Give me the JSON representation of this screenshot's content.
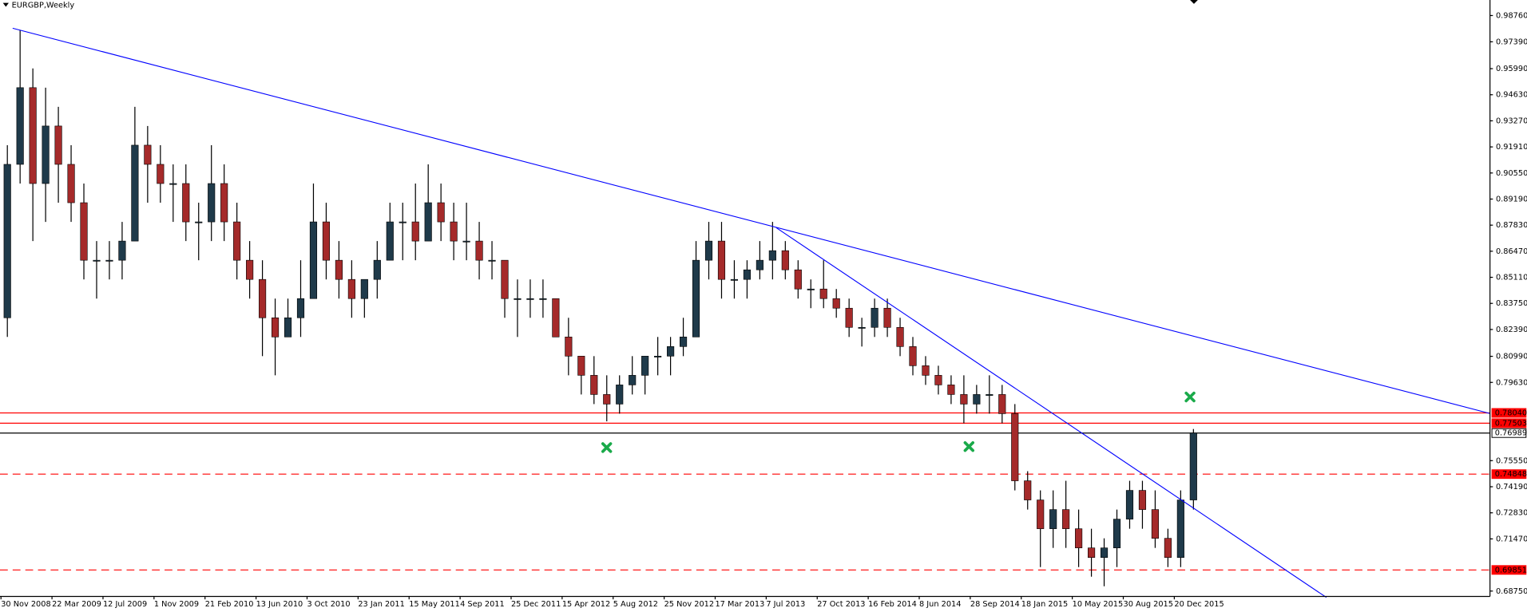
{
  "chart_data": {
    "type": "candlestick",
    "title": "EURGBP,Weekly",
    "categories": [
      "30 Nov 2008",
      null,
      null,
      null,
      "22 Mar 2009",
      null,
      null,
      null,
      "12 Jul 2009",
      null,
      null,
      null,
      "1 Nov 2009",
      null,
      null,
      null,
      "21 Feb 2010",
      null,
      null,
      null,
      "13 Jun 2010",
      null,
      null,
      null,
      "3 Oct 2010",
      null,
      null,
      null,
      "23 Jan 2011",
      null,
      null,
      null,
      "15 May 2011",
      null,
      null,
      null,
      "4 Sep 2011",
      null,
      null,
      null,
      "25 Dec 2011",
      null,
      null,
      null,
      "15 Apr 2012",
      null,
      null,
      null,
      "5 Aug 2012",
      null,
      null,
      null,
      "25 Nov 2012",
      null,
      null,
      null,
      "17 Mar 2013",
      null,
      null,
      null,
      "7 Jul 2013",
      null,
      null,
      null,
      "27 Oct 2013",
      null,
      null,
      null,
      "16 Feb 2014",
      null,
      null,
      null,
      "8 Jun 2014",
      null,
      null,
      null,
      "28 Sep 2014",
      null,
      null,
      null,
      "18 Jan 2015",
      null,
      null,
      null,
      "10 May 2015",
      null,
      null,
      null,
      "30 Aug 2015",
      null,
      null,
      null,
      "20 Dec 2015",
      null
    ],
    "open": [
      0.83,
      0.91,
      0.95,
      0.9,
      0.93,
      0.91,
      0.89,
      0.86,
      0.86,
      0.86,
      0.87,
      0.92,
      0.91,
      0.9,
      0.9,
      0.88,
      0.88,
      0.9,
      0.88,
      0.86,
      0.85,
      0.83,
      0.82,
      0.83,
      0.84,
      0.88,
      0.86,
      0.85,
      0.84,
      0.85,
      0.86,
      0.88,
      0.88,
      0.87,
      0.89,
      0.88,
      0.87,
      0.87,
      0.86,
      0.86,
      0.84,
      0.84,
      0.84,
      0.84,
      0.82,
      0.81,
      0.8,
      0.79,
      0.785,
      0.795,
      0.8,
      0.81,
      0.81,
      0.815,
      0.82,
      0.86,
      0.87,
      0.85,
      0.85,
      0.855,
      0.86,
      0.865,
      0.855,
      0.845,
      0.845,
      0.84,
      0.835,
      0.825,
      0.825,
      0.835,
      0.825,
      0.815,
      0.805,
      0.8,
      0.795,
      0.79,
      0.785,
      0.79,
      0.79,
      0.78,
      0.745,
      0.735,
      0.72,
      0.73,
      0.72,
      0.71,
      0.705,
      0.71,
      0.725,
      0.74,
      0.73,
      0.715,
      0.705,
      0.735
    ],
    "high": [
      0.92,
      0.98,
      0.96,
      0.95,
      0.94,
      0.92,
      0.9,
      0.87,
      0.87,
      0.88,
      0.94,
      0.93,
      0.92,
      0.91,
      0.91,
      0.89,
      0.92,
      0.91,
      0.89,
      0.87,
      0.86,
      0.84,
      0.84,
      0.86,
      0.9,
      0.89,
      0.87,
      0.86,
      0.85,
      0.87,
      0.89,
      0.89,
      0.9,
      0.91,
      0.9,
      0.89,
      0.89,
      0.88,
      0.87,
      0.86,
      0.85,
      0.85,
      0.85,
      0.84,
      0.83,
      0.81,
      0.81,
      0.8,
      0.8,
      0.81,
      0.81,
      0.82,
      0.82,
      0.83,
      0.87,
      0.88,
      0.88,
      0.86,
      0.86,
      0.87,
      0.88,
      0.87,
      0.86,
      0.85,
      0.86,
      0.845,
      0.84,
      0.83,
      0.84,
      0.84,
      0.83,
      0.82,
      0.81,
      0.805,
      0.8,
      0.8,
      0.795,
      0.8,
      0.795,
      0.785,
      0.75,
      0.74,
      0.74,
      0.745,
      0.73,
      0.72,
      0.715,
      0.73,
      0.745,
      0.745,
      0.74,
      0.72,
      0.74,
      0.772
    ],
    "low": [
      0.82,
      0.9,
      0.87,
      0.88,
      0.89,
      0.88,
      0.85,
      0.84,
      0.85,
      0.85,
      0.87,
      0.89,
      0.89,
      0.88,
      0.87,
      0.86,
      0.87,
      0.87,
      0.85,
      0.84,
      0.81,
      0.8,
      0.82,
      0.82,
      0.84,
      0.85,
      0.84,
      0.83,
      0.83,
      0.84,
      0.86,
      0.86,
      0.86,
      0.87,
      0.87,
      0.86,
      0.86,
      0.85,
      0.85,
      0.83,
      0.82,
      0.83,
      0.83,
      0.82,
      0.8,
      0.79,
      0.785,
      0.776,
      0.78,
      0.79,
      0.79,
      0.8,
      0.8,
      0.81,
      0.82,
      0.85,
      0.84,
      0.84,
      0.84,
      0.85,
      0.85,
      0.85,
      0.84,
      0.835,
      0.835,
      0.83,
      0.82,
      0.815,
      0.82,
      0.82,
      0.81,
      0.8,
      0.795,
      0.79,
      0.785,
      0.775,
      0.78,
      0.78,
      0.775,
      0.74,
      0.73,
      0.7,
      0.71,
      0.71,
      0.7,
      0.695,
      0.69,
      0.7,
      0.72,
      0.72,
      0.71,
      0.7,
      0.7,
      0.73
    ],
    "close": [
      0.91,
      0.95,
      0.9,
      0.93,
      0.91,
      0.89,
      0.86,
      0.86,
      0.86,
      0.87,
      0.92,
      0.91,
      0.9,
      0.9,
      0.88,
      0.88,
      0.9,
      0.88,
      0.86,
      0.85,
      0.83,
      0.82,
      0.83,
      0.84,
      0.88,
      0.86,
      0.85,
      0.84,
      0.85,
      0.86,
      0.88,
      0.88,
      0.87,
      0.89,
      0.88,
      0.87,
      0.87,
      0.86,
      0.86,
      0.84,
      0.84,
      0.84,
      0.84,
      0.82,
      0.81,
      0.8,
      0.79,
      0.785,
      0.795,
      0.8,
      0.81,
      0.81,
      0.815,
      0.82,
      0.86,
      0.87,
      0.85,
      0.85,
      0.855,
      0.86,
      0.865,
      0.855,
      0.845,
      0.845,
      0.84,
      0.835,
      0.825,
      0.825,
      0.835,
      0.825,
      0.815,
      0.805,
      0.8,
      0.795,
      0.79,
      0.785,
      0.79,
      0.79,
      0.78,
      0.745,
      0.735,
      0.72,
      0.73,
      0.72,
      0.71,
      0.705,
      0.71,
      0.725,
      0.74,
      0.73,
      0.715,
      0.705,
      0.735,
      0.7699
    ],
    "up_color": "#1f3a4a",
    "down_color": "#a52a2a",
    "ylim": [
      0.6847,
      0.9957
    ],
    "yticks": [
      {
        "value": 0.9876,
        "label": "0.98760"
      },
      {
        "value": 0.9739,
        "label": "0.97390"
      },
      {
        "value": 0.9599,
        "label": "0.95990"
      },
      {
        "value": 0.9463,
        "label": "0.94630"
      },
      {
        "value": 0.9327,
        "label": "0.93270"
      },
      {
        "value": 0.9191,
        "label": "0.91910"
      },
      {
        "value": 0.9055,
        "label": "0.90550"
      },
      {
        "value": 0.8919,
        "label": "0.89190"
      },
      {
        "value": 0.8783,
        "label": "0.87830"
      },
      {
        "value": 0.8647,
        "label": "0.86470"
      },
      {
        "value": 0.8511,
        "label": "0.85110"
      },
      {
        "value": 0.8375,
        "label": "0.83750"
      },
      {
        "value": 0.8239,
        "label": "0.82390"
      },
      {
        "value": 0.8099,
        "label": "0.80990"
      },
      {
        "value": 0.7963,
        "label": "0.79630"
      },
      {
        "value": 0.7555,
        "label": "0.75550"
      },
      {
        "value": 0.7419,
        "label": "0.74190"
      },
      {
        "value": 0.7283,
        "label": "0.72830"
      },
      {
        "value": 0.7147,
        "label": "0.71470"
      },
      {
        "value": 0.6875,
        "label": "0.68750"
      }
    ],
    "levels": [
      {
        "value": 0.7804,
        "label": "0.78040",
        "color": "#ff0000",
        "style": "solid"
      },
      {
        "value": 0.77503,
        "label": "0.77503",
        "color": "#ff0000",
        "style": "solid"
      },
      {
        "value": 0.76989,
        "label": "0.76989",
        "color": "#000000",
        "style": "solid"
      },
      {
        "value": 0.74848,
        "label": "0.74848",
        "color": "#ff0000",
        "style": "dashed"
      },
      {
        "value": 0.69851,
        "label": "0.69851",
        "color": "#ff0000",
        "style": "dashed"
      }
    ]
  }
}
